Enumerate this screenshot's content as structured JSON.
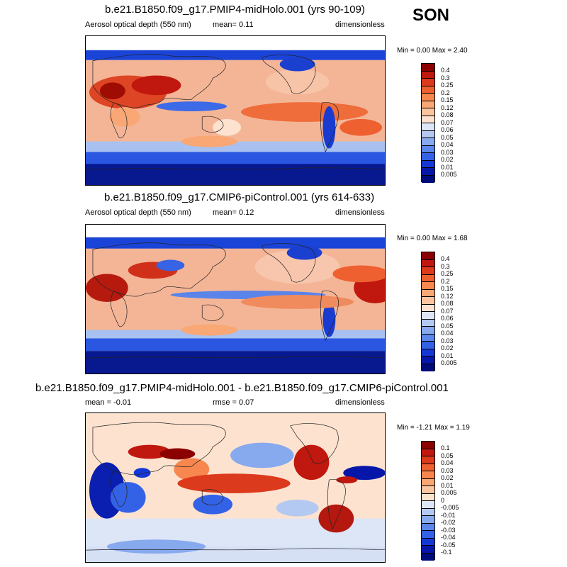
{
  "season": "SON",
  "panels": [
    {
      "title": "b.e21.B1850.f09_g17.PMIP4-midHolo.001 (yrs 90-109)",
      "left_label": "Aerosol optical depth (550 nm)",
      "center_label": "mean=  0.11",
      "right_label": "dimensionless",
      "minmax": "Min =  0.00 Max =  2.40"
    },
    {
      "title": "b.e21.B1850.f09_g17.CMIP6-piControl.001 (yrs 614-633)",
      "left_label": "Aerosol optical depth (550 nm)",
      "center_label": "mean=  0.12",
      "right_label": "dimensionless",
      "minmax": "Min =  0.00 Max =  1.68"
    },
    {
      "title": "b.e21.B1850.f09_g17.PMIP4-midHolo.001 - b.e21.B1850.f09_g17.CMIP6-piControl.001",
      "left_label": "mean =  -0.01",
      "center_label": "rmse =  0.07",
      "right_label": "dimensionless",
      "minmax": "Min =  -1.21 Max =  1.19"
    }
  ],
  "colorbars": {
    "absolute": {
      "labels": [
        "0.4",
        "0.3",
        "0.25",
        "0.2",
        "0.15",
        "0.12",
        "0.08",
        "0.07",
        "0.06",
        "0.05",
        "0.04",
        "0.03",
        "0.02",
        "0.01",
        "0.005"
      ],
      "colors": [
        "#8b0000",
        "#c0180e",
        "#dc3a1c",
        "#ef6030",
        "#f7874e",
        "#f9a774",
        "#fbc5a0",
        "#fde3cf",
        "#dde6f7",
        "#b4c9f2",
        "#87a9ee",
        "#5b86ea",
        "#3462e6",
        "#1438d6",
        "#0616a9",
        "#000a7a"
      ]
    },
    "difference": {
      "labels": [
        "0.1",
        "0.05",
        "0.04",
        "0.03",
        "0.02",
        "0.01",
        "0.005",
        "0",
        "-0.005",
        "-0.01",
        "-0.02",
        "-0.03",
        "-0.04",
        "-0.05",
        "-0.1"
      ],
      "colors": [
        "#8b0000",
        "#c0180e",
        "#dc3a1c",
        "#ef6030",
        "#f7874e",
        "#f9a774",
        "#fbc5a0",
        "#fde3cf",
        "#dde6f7",
        "#b4c9f2",
        "#87a9ee",
        "#5b86ea",
        "#3462e6",
        "#1438d6",
        "#0616a9",
        "#000a7a"
      ]
    }
  }
}
